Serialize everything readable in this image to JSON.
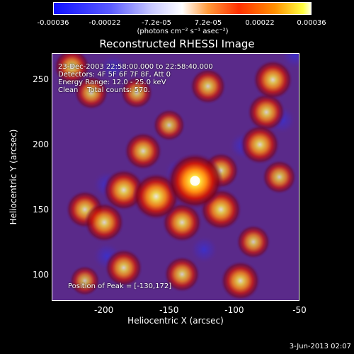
{
  "chart_data": {
    "type": "heatmap",
    "title": "Reconstructed RHESSI Image",
    "xlabel": "Heliocentric X (arcsec)",
    "ylabel": "Heliocentric Y (arcsec)",
    "xlim": [
      -240,
      -50
    ],
    "ylim": [
      80,
      270
    ],
    "xticks": [
      "-200",
      "-150",
      "-100",
      "-50"
    ],
    "xtick_values": [
      -200,
      -150,
      -100,
      -50
    ],
    "yticks": [
      "100",
      "150",
      "200",
      "250"
    ],
    "ytick_values": [
      100,
      150,
      200,
      250
    ],
    "colorbar": {
      "ticks": [
        "-0.00036",
        "-0.00022",
        "-7.2e-05",
        "7.2e-05",
        "0.00022",
        "0.00036"
      ],
      "units": "(photons cm⁻² s⁻¹ asec⁻²)"
    },
    "annotations": [
      "23-Dec-2003 22:58:00.000 to 22:58:40.000",
      "Detectors: 4F 5F 6F 7F 8F, Att 0",
      "Energy Range: 12.0 - 25.0 keV",
      "Clean    Total counts: 570."
    ],
    "peak_label": "Position of Peak = [-130,172]",
    "peak": [
      -130,
      172
    ],
    "sources": [
      {
        "x": -130,
        "y": 172,
        "amp": 1.0
      },
      {
        "x": -160,
        "y": 160,
        "amp": 0.75
      },
      {
        "x": -185,
        "y": 165,
        "amp": 0.6
      },
      {
        "x": -200,
        "y": 140,
        "amp": 0.55
      },
      {
        "x": -215,
        "y": 150,
        "amp": 0.5
      },
      {
        "x": -140,
        "y": 140,
        "amp": 0.55
      },
      {
        "x": -110,
        "y": 150,
        "amp": 0.6
      },
      {
        "x": -110,
        "y": 180,
        "amp": 0.45
      },
      {
        "x": -170,
        "y": 195,
        "amp": 0.5
      },
      {
        "x": -150,
        "y": 215,
        "amp": 0.35
      },
      {
        "x": -80,
        "y": 200,
        "amp": 0.55
      },
      {
        "x": -75,
        "y": 225,
        "amp": 0.5
      },
      {
        "x": -65,
        "y": 175,
        "amp": 0.4
      },
      {
        "x": -70,
        "y": 250,
        "amp": 0.55
      },
      {
        "x": -120,
        "y": 245,
        "amp": 0.45
      },
      {
        "x": -175,
        "y": 240,
        "amp": 0.35
      },
      {
        "x": -210,
        "y": 240,
        "amp": 0.4
      },
      {
        "x": -225,
        "y": 260,
        "amp": 0.45
      },
      {
        "x": -185,
        "y": 105,
        "amp": 0.5
      },
      {
        "x": -140,
        "y": 100,
        "amp": 0.45
      },
      {
        "x": -95,
        "y": 95,
        "amp": 0.55
      },
      {
        "x": -85,
        "y": 125,
        "amp": 0.4
      },
      {
        "x": -215,
        "y": 95,
        "amp": 0.3
      }
    ]
  },
  "footer": {
    "date": "3-Jun-2013 02:07"
  }
}
